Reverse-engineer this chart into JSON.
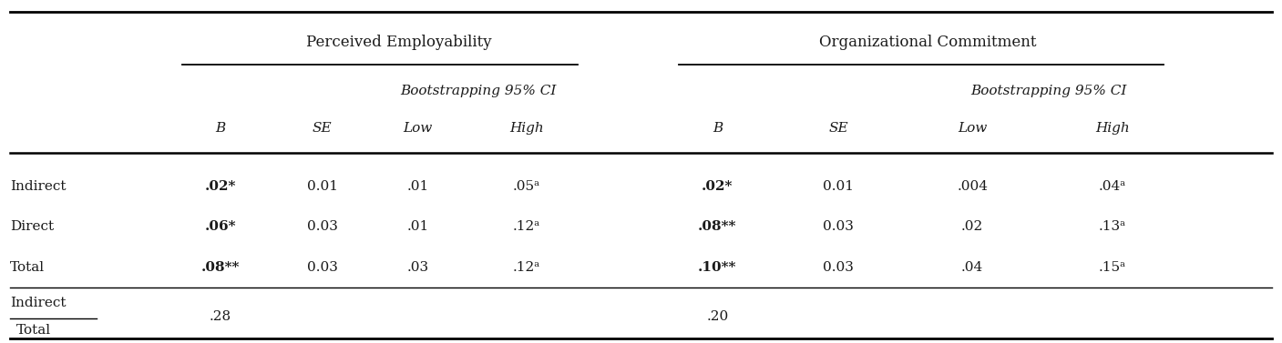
{
  "fig_width": 14.07,
  "fig_height": 3.77,
  "bg_color": "#ffffff",
  "header1_left": "Perceived Employability",
  "header1_right": "Organizational Commitment",
  "header2": "Bootstrapping 95% CI",
  "col_headers": [
    "B",
    "SE",
    "Low",
    "High",
    "B",
    "SE",
    "Low",
    "High"
  ],
  "row_labels": [
    "Indirect",
    "Direct",
    "Total"
  ],
  "data_rows": [
    [
      ".02*",
      "0.01",
      ".01",
      ".05ᵃ",
      ".02*",
      "0.01",
      ".004",
      ".04ᵃ"
    ],
    [
      ".06*",
      "0.03",
      ".01",
      ".12ᵃ",
      ".08**",
      "0.03",
      ".02",
      ".13ᵃ"
    ],
    [
      ".08**",
      "0.03",
      ".03",
      ".12ᵃ",
      ".10**",
      "0.03",
      ".04",
      ".15ᵃ"
    ]
  ],
  "data_bold_cols": [
    0,
    4
  ],
  "ratio_pe": ".28",
  "ratio_oc": ".20",
  "text_color": "#1a1a1a",
  "fontsize": 11
}
